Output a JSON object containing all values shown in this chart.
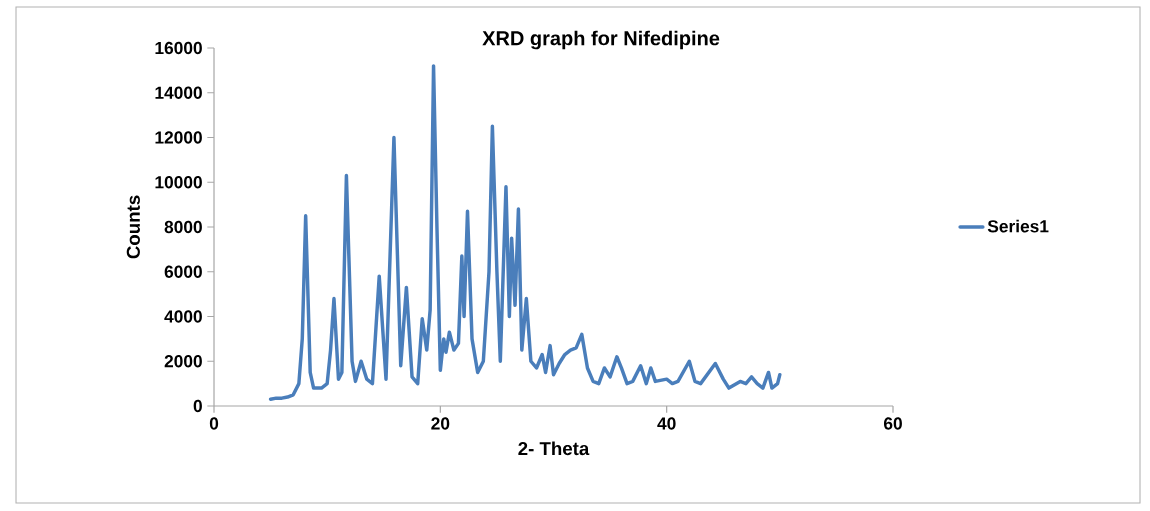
{
  "chart_data": {
    "type": "line",
    "title": "XRD graph for Nifedipine",
    "xlabel": "2- Theta",
    "ylabel": "Counts",
    "xlim": [
      0,
      60
    ],
    "xticks": [
      0,
      20,
      40,
      60
    ],
    "ylim": [
      0,
      16000
    ],
    "yticks": [
      0,
      2000,
      4000,
      6000,
      8000,
      10000,
      12000,
      14000,
      16000
    ],
    "grid": false,
    "legend": "right",
    "marker": "none",
    "line_style": "solid",
    "series": [
      {
        "name": "Series1",
        "color": "#4a7ebb",
        "x": [
          5,
          5.5,
          6,
          6.5,
          7,
          7.5,
          7.8,
          8.1,
          8.5,
          8.8,
          9.5,
          10,
          10.3,
          10.6,
          11,
          11.3,
          11.7,
          12.2,
          12.5,
          13,
          13.5,
          14,
          14.6,
          15.2,
          15.9,
          16.5,
          17,
          17.5,
          18,
          18.4,
          18.8,
          19.1,
          19.4,
          19.7,
          20,
          20.3,
          20.5,
          20.8,
          21.2,
          21.6,
          21.9,
          22.1,
          22.4,
          22.8,
          23.3,
          23.8,
          24.3,
          24.6,
          25,
          25.3,
          25.8,
          26.1,
          26.3,
          26.6,
          26.9,
          27.2,
          27.6,
          28,
          28.5,
          29,
          29.3,
          29.7,
          30,
          30.5,
          31,
          31.5,
          32,
          32.5,
          33,
          33.5,
          34,
          34.5,
          35,
          35.6,
          36,
          36.5,
          37,
          37.7,
          38.2,
          38.6,
          39,
          40,
          40.5,
          41,
          42,
          42.5,
          43,
          44.3,
          45,
          45.5,
          46.5,
          47,
          47.5,
          48,
          48.5,
          49,
          49.3,
          49.8,
          50
        ],
        "values": [
          300,
          350,
          350,
          400,
          500,
          1000,
          3000,
          8500,
          1500,
          800,
          800,
          1000,
          2500,
          4800,
          1200,
          1500,
          10300,
          2000,
          1100,
          2000,
          1200,
          1000,
          5800,
          1200,
          12000,
          1800,
          5300,
          1300,
          1000,
          3900,
          2500,
          4300,
          15200,
          8000,
          1600,
          3000,
          2400,
          3300,
          2500,
          2800,
          6700,
          4000,
          8700,
          3000,
          1500,
          2000,
          6000,
          12500,
          6000,
          2000,
          9800,
          4000,
          7500,
          4500,
          8800,
          2500,
          4800,
          2000,
          1700,
          2300,
          1500,
          2700,
          1400,
          1900,
          2300,
          2500,
          2600,
          3200,
          1700,
          1100,
          1000,
          1700,
          1300,
          2200,
          1700,
          1000,
          1100,
          1800,
          1000,
          1700,
          1100,
          1200,
          1000,
          1100,
          2000,
          1100,
          1000,
          1900,
          1200,
          800,
          1100,
          1000,
          1300,
          1000,
          800,
          1500,
          800,
          1000,
          1400
        ]
      }
    ]
  }
}
